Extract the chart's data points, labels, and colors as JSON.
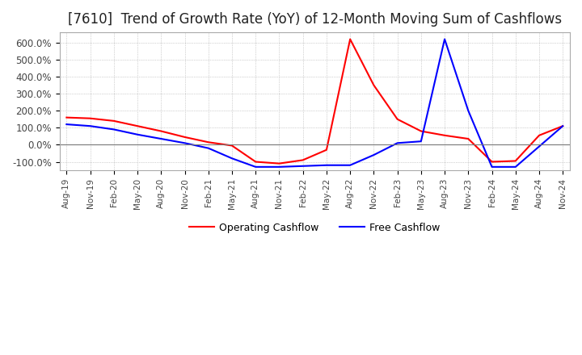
{
  "title": "[7610]  Trend of Growth Rate (YoY) of 12-Month Moving Sum of Cashflows",
  "title_fontsize": 12,
  "ylim": [
    -150,
    660
  ],
  "yticks": [
    -100.0,
    0.0,
    100.0,
    200.0,
    300.0,
    400.0,
    500.0,
    600.0
  ],
  "ytick_labels": [
    "-100.0%",
    "0.0%",
    "100.0%",
    "200.0%",
    "300.0%",
    "400.0%",
    "500.0%",
    "600.0%"
  ],
  "background_color": "#ffffff",
  "grid_color": "#aaaaaa",
  "operating_color": "#ff0000",
  "free_color": "#0000ff",
  "legend_labels": [
    "Operating Cashflow",
    "Free Cashflow"
  ],
  "x_labels": [
    "Aug-19",
    "Nov-19",
    "Feb-20",
    "May-20",
    "Aug-20",
    "Nov-20",
    "Feb-21",
    "May-21",
    "Aug-21",
    "Nov-21",
    "Feb-22",
    "May-22",
    "Aug-22",
    "Nov-22",
    "Feb-23",
    "May-23",
    "Aug-23",
    "Nov-23",
    "Feb-24",
    "May-24",
    "Aug-24",
    "Nov-24"
  ],
  "operating_cashflow": [
    160,
    155,
    140,
    110,
    80,
    45,
    15,
    -5,
    -100,
    -110,
    -90,
    -30,
    620,
    350,
    150,
    80,
    55,
    35,
    -100,
    -95,
    55,
    110
  ],
  "free_cashflow": [
    120,
    110,
    90,
    60,
    35,
    10,
    -20,
    -80,
    -130,
    -130,
    -125,
    -120,
    -120,
    -60,
    10,
    20,
    620,
    200,
    -130,
    -130,
    -10,
    110
  ]
}
